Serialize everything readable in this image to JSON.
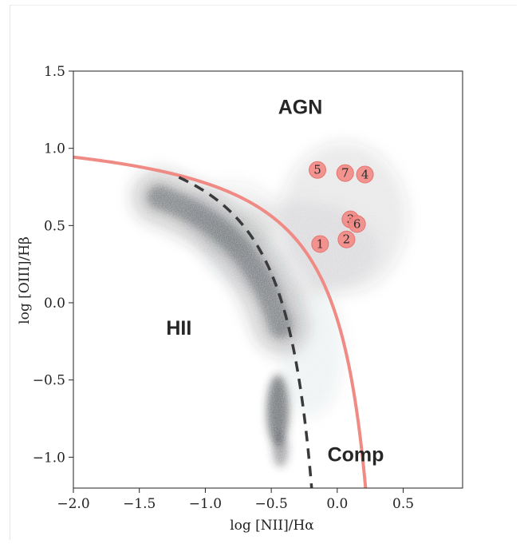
{
  "chart_data": {
    "type": "scatter",
    "title": "",
    "xlabel": "log [NII]/Hα",
    "ylabel": "log [OIII]/Hβ",
    "xlim": [
      -2.0,
      0.95
    ],
    "ylim": [
      -1.2,
      1.5
    ],
    "x_ticks": [
      -2.0,
      -1.5,
      -1.0,
      -0.5,
      0.0,
      0.5
    ],
    "x_tick_labels": [
      "−2.0",
      "−1.5",
      "−1.0",
      "−0.5",
      "0.0",
      "0.5"
    ],
    "y_ticks": [
      -1.0,
      -0.5,
      0.0,
      0.5,
      1.0,
      1.5
    ],
    "y_tick_labels": [
      "−1.0",
      "−0.5",
      "0.0",
      "0.5",
      "1.0",
      "1.5"
    ],
    "grid": false,
    "region_labels": [
      {
        "text": "AGN",
        "x": -0.28,
        "y": 1.27
      },
      {
        "text": "HII",
        "x": -1.2,
        "y": -0.16
      },
      {
        "text": "Comp",
        "x": 0.14,
        "y": -0.98
      }
    ],
    "points": [
      {
        "label": "1",
        "x": -0.13,
        "y": 0.38
      },
      {
        "label": "2",
        "x": 0.07,
        "y": 0.41
      },
      {
        "label": "3",
        "x": 0.1,
        "y": 0.54
      },
      {
        "label": "6",
        "x": 0.15,
        "y": 0.51
      },
      {
        "label": "5",
        "x": -0.15,
        "y": 0.86
      },
      {
        "label": "7",
        "x": 0.06,
        "y": 0.84
      },
      {
        "label": "4",
        "x": 0.21,
        "y": 0.83
      }
    ],
    "curves": [
      {
        "name": "kewley",
        "style": "solid",
        "color": "#f08a84",
        "formula": "0.61/(x-0.47)+1.19",
        "x_range": [
          -2.0,
          0.24
        ]
      },
      {
        "name": "kauffmann",
        "style": "dashed",
        "color": "#3a3a3a",
        "formula": "0.61/(x-0.05)+1.3",
        "x_range": [
          -1.2,
          -0.18
        ]
      }
    ],
    "colors": {
      "marker_fill": "#f28b87",
      "marker_edge": "#e5746f",
      "density": "#2a2d33"
    }
  }
}
